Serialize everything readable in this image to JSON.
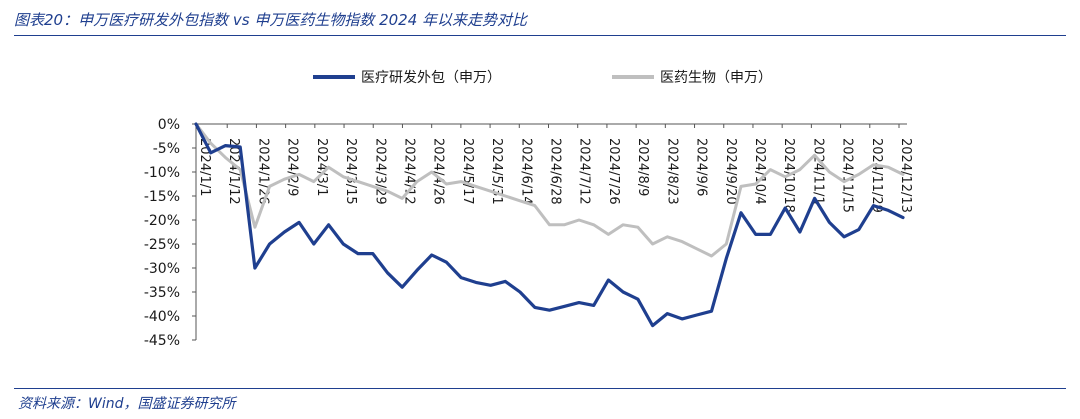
{
  "header": {
    "title": "图表20：申万医疗研发外包指数 vs 申万医药生物指数 2024 年以来走势对比"
  },
  "footer": {
    "source": "资料来源：Wind，国盛证券研究所"
  },
  "colors": {
    "series1": "#1f3f8f",
    "series2": "#bfbfbf",
    "accent": "#1f3f8f"
  },
  "chart_data": {
    "type": "line",
    "legend_position": "top",
    "grid": false,
    "ylim": [
      -45,
      0
    ],
    "yticks": [
      "0%",
      "-5%",
      "-10%",
      "-15%",
      "-20%",
      "-25%",
      "-30%",
      "-35%",
      "-40%",
      "-45%"
    ],
    "xticks": [
      "2024/1/1",
      "2024/1/12",
      "2024/1/26",
      "2024/2/9",
      "2024/3/1",
      "2024/3/15",
      "2024/3/29",
      "2024/4/12",
      "2024/4/26",
      "2024/5/17",
      "2024/5/31",
      "2024/6/14",
      "2024/6/28",
      "2024/7/12",
      "2024/7/26",
      "2024/8/9",
      "2024/8/23",
      "2024/9/6",
      "2024/9/20",
      "2024/10/4",
      "2024/10/18",
      "2024/11/1",
      "2024/11/15",
      "2024/11/29",
      "2024/12/13"
    ],
    "series": [
      {
        "name": "医疗研发外包（申万）",
        "values": [
          0,
          -6,
          -4.5,
          -4.8,
          -30,
          -25,
          -22.5,
          -20.5,
          -25,
          -21,
          -25,
          -27,
          -27,
          -31,
          -34,
          -30.5,
          -27.3,
          -28.8,
          -32,
          -33,
          -33.6,
          -32.8,
          -35,
          -38.2,
          -38.8,
          -38,
          -37.2,
          -37.8,
          -32.5,
          -35,
          -36.5,
          -42,
          -39.5,
          -40.6,
          -39.8,
          -39,
          -28,
          -18.5,
          -23,
          -23,
          -17.5,
          -22.5,
          -15.5,
          -20.5,
          -23.5,
          -22,
          -17,
          -18,
          -19.5
        ]
      },
      {
        "name": "医药生物（申万）",
        "values": [
          0,
          -4,
          -7,
          -9.5,
          -21.5,
          -13,
          -11.5,
          -10.5,
          -12,
          -9,
          -11,
          -12,
          -13,
          -14,
          -15.5,
          -12,
          -10,
          -12.5,
          -12,
          -13,
          -14,
          -15,
          -16,
          -17,
          -21,
          -21,
          -20,
          -21,
          -23,
          -21,
          -21.5,
          -25,
          -23.5,
          -24.5,
          -26,
          -27.5,
          -25,
          -13,
          -12.5,
          -9.5,
          -11,
          -9.5,
          -6.5,
          -10,
          -12,
          -10.5,
          -8.5,
          -9,
          -10.5
        ]
      }
    ]
  }
}
